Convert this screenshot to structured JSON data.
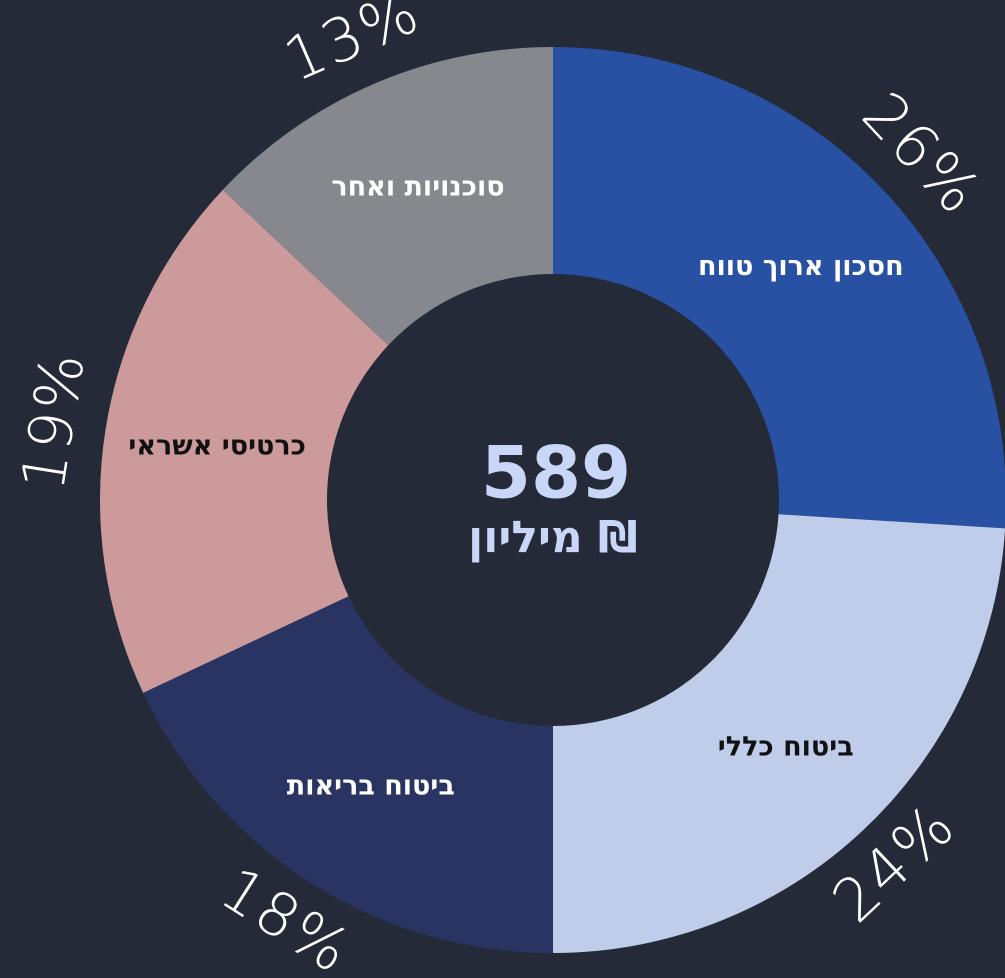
{
  "chart_data": {
    "type": "donut",
    "categories": [
      "חסכון ארוך טווח",
      "ביטוח כללי",
      "ביטוח בריאות",
      "כרטיסי אשראי",
      "סוכנויות ואחר"
    ],
    "values": [
      26,
      24,
      18,
      19,
      13
    ],
    "value_labels": [
      "26%",
      "24%",
      "18%",
      "19%",
      "13%"
    ],
    "colors": [
      "#2850a3",
      "#c0cdea",
      "#293462",
      "#cd9a9c",
      "#86888e"
    ],
    "total": 589,
    "total_unit": "מיליון ₪"
  }
}
